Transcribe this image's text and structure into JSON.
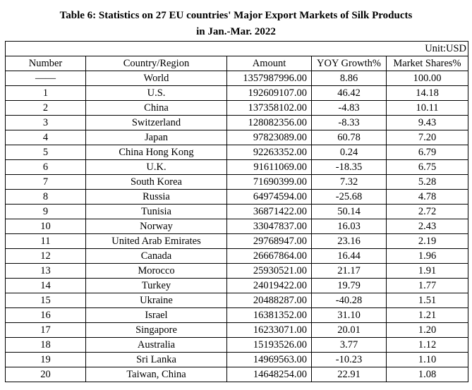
{
  "title": {
    "line1": "Table 6: Statistics on 27 EU countries' Major Export Markets of Silk Products",
    "line2": "in Jan.-Mar. 2022"
  },
  "unit": "Unit:USD",
  "headers": [
    "Number",
    "Country/Region",
    "Amount",
    "YOY Growth%",
    "Market Shares%"
  ],
  "rows": [
    {
      "number": "——",
      "country": "World",
      "amount": "1357987996.00",
      "yoy": "8.86",
      "share": "100.00"
    },
    {
      "number": "1",
      "country": "U.S.",
      "amount": "192609107.00",
      "yoy": "46.42",
      "share": "14.18"
    },
    {
      "number": "2",
      "country": "China",
      "amount": "137358102.00",
      "yoy": "-4.83",
      "share": "10.11"
    },
    {
      "number": "3",
      "country": "Switzerland",
      "amount": "128082356.00",
      "yoy": "-8.33",
      "share": "9.43"
    },
    {
      "number": "4",
      "country": "Japan",
      "amount": "97823089.00",
      "yoy": "60.78",
      "share": "7.20"
    },
    {
      "number": "5",
      "country": "China Hong Kong",
      "amount": "92263352.00",
      "yoy": "0.24",
      "share": "6.79"
    },
    {
      "number": "6",
      "country": "U.K.",
      "amount": "91611069.00",
      "yoy": "-18.35",
      "share": "6.75"
    },
    {
      "number": "7",
      "country": "South Korea",
      "amount": "71690399.00",
      "yoy": "7.32",
      "share": "5.28"
    },
    {
      "number": "8",
      "country": "Russia",
      "amount": "64974594.00",
      "yoy": "-25.68",
      "share": "4.78"
    },
    {
      "number": "9",
      "country": "Tunisia",
      "amount": "36871422.00",
      "yoy": "50.14",
      "share": "2.72"
    },
    {
      "number": "10",
      "country": "Norway",
      "amount": "33047837.00",
      "yoy": "16.03",
      "share": "2.43"
    },
    {
      "number": "11",
      "country": "United Arab Emirates",
      "amount": "29768947.00",
      "yoy": "23.16",
      "share": "2.19"
    },
    {
      "number": "12",
      "country": "Canada",
      "amount": "26667864.00",
      "yoy": "16.44",
      "share": "1.96"
    },
    {
      "number": "13",
      "country": "Morocco",
      "amount": "25930521.00",
      "yoy": "21.17",
      "share": "1.91"
    },
    {
      "number": "14",
      "country": "Turkey",
      "amount": "24019422.00",
      "yoy": "19.79",
      "share": "1.77"
    },
    {
      "number": "15",
      "country": "Ukraine",
      "amount": "20488287.00",
      "yoy": "-40.28",
      "share": "1.51"
    },
    {
      "number": "16",
      "country": "Israel",
      "amount": "16381352.00",
      "yoy": "31.10",
      "share": "1.21"
    },
    {
      "number": "17",
      "country": "Singapore",
      "amount": "16233071.00",
      "yoy": "20.01",
      "share": "1.20"
    },
    {
      "number": "18",
      "country": "Australia",
      "amount": "15193526.00",
      "yoy": "3.77",
      "share": "1.12"
    },
    {
      "number": "19",
      "country": "Sri Lanka",
      "amount": "14969563.00",
      "yoy": "-10.23",
      "share": "1.10"
    },
    {
      "number": "20",
      "country": "Taiwan, China",
      "amount": "14648254.00",
      "yoy": "22.91",
      "share": "1.08"
    }
  ]
}
